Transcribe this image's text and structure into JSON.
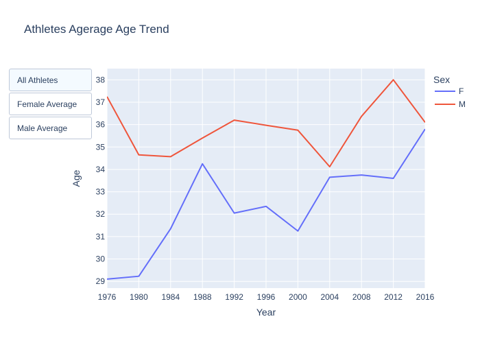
{
  "chart_data": {
    "type": "line",
    "title": "Athletes Agerage Age Trend",
    "xlabel": "Year",
    "ylabel": "Age",
    "x": [
      1976,
      1980,
      1984,
      1988,
      1992,
      1996,
      2000,
      2004,
      2008,
      2012,
      2016
    ],
    "xlim": [
      1976,
      2016
    ],
    "ylim": [
      28.7,
      38.5
    ],
    "xticks": [
      1976,
      1980,
      1984,
      1988,
      1992,
      1996,
      2000,
      2004,
      2008,
      2012,
      2016
    ],
    "yticks": [
      29,
      30,
      31,
      32,
      33,
      34,
      35,
      36,
      37,
      38
    ],
    "grid": true,
    "legend": {
      "title": "Sex",
      "placement": "right"
    },
    "series": [
      {
        "name": "F",
        "color": "#636efa",
        "values": [
          29.1,
          29.23,
          31.35,
          34.25,
          32.05,
          32.35,
          31.25,
          33.65,
          33.75,
          33.6,
          35.8
        ]
      },
      {
        "name": "M",
        "color": "#ef553b",
        "values": [
          37.25,
          34.65,
          34.57,
          35.4,
          36.2,
          35.97,
          35.75,
          34.12,
          36.37,
          38.0,
          36.1
        ]
      }
    ],
    "plot_bg": "#e5ecf6",
    "grid_color": "#ffffff"
  },
  "buttons": [
    {
      "label": "All Athletes",
      "active": true
    },
    {
      "label": "Female Average",
      "active": false
    },
    {
      "label": "Male Average",
      "active": false
    }
  ]
}
